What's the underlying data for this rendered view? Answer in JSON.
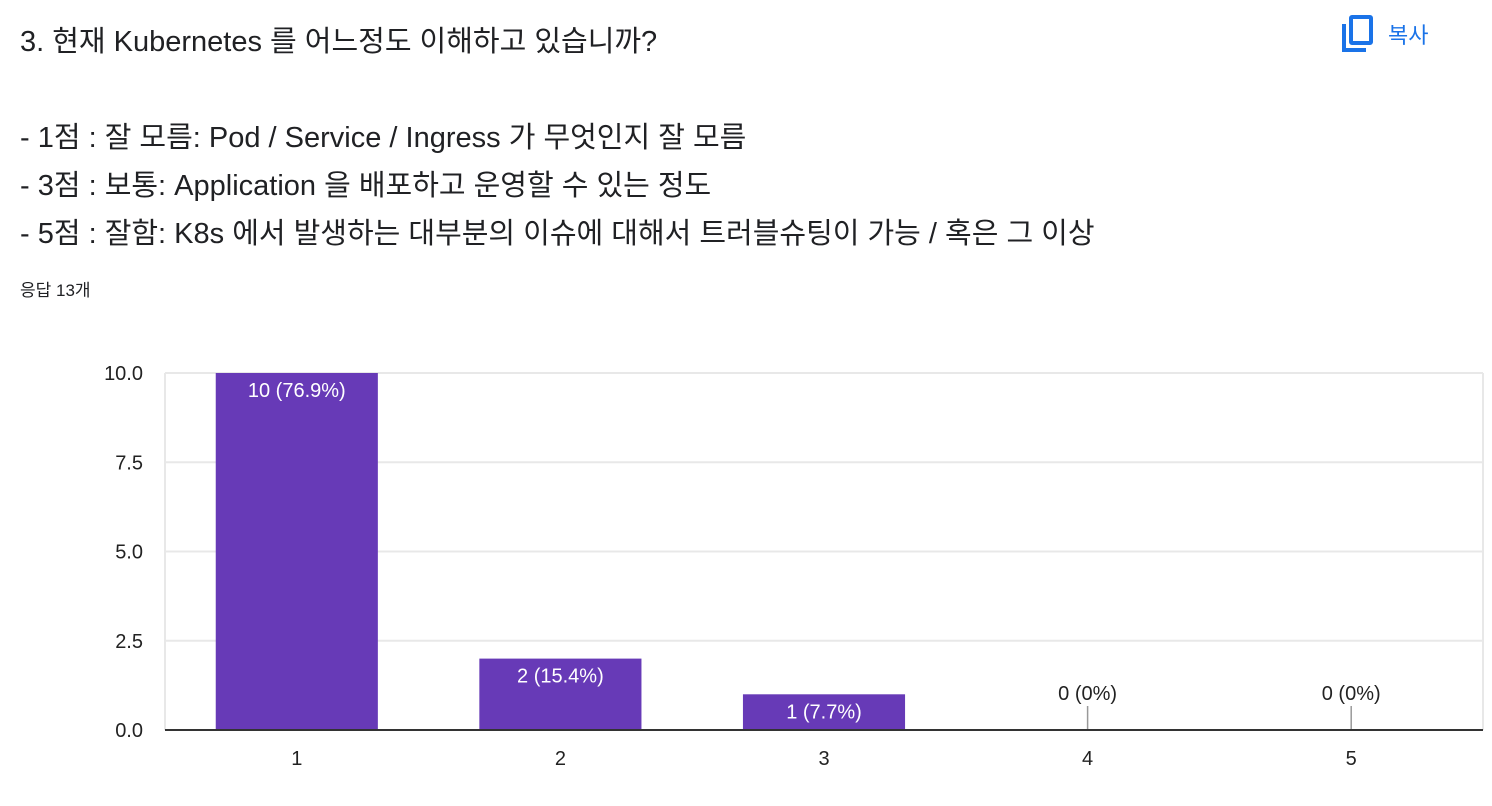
{
  "question": {
    "title": "3. 현재 Kubernetes 를 어느정도 이해하고 있습니까?",
    "criteria": [
      "- 1점 : 잘 모름: Pod / Service / Ingress 가 무엇인지 잘 모름",
      "- 3점 : 보통: Application 을 배포하고 운영할 수 있는 정도",
      "- 5점 :  잘함: K8s 에서 발생하는 대부분의 이슈에 대해서 트러블슈팅이 가능 / 혹은 그 이상"
    ]
  },
  "copy": {
    "label": "복사",
    "icon": "copy-icon"
  },
  "response_count": "응답 13개",
  "colors": {
    "bar": "#673ab7",
    "accent": "#1a73e8",
    "grid": "#e8e8e8",
    "axis": "#333333"
  },
  "chart_data": {
    "type": "bar",
    "categories": [
      "1",
      "2",
      "3",
      "4",
      "5"
    ],
    "values": [
      10,
      2,
      1,
      0,
      0
    ],
    "data_labels": [
      "10 (76.9%)",
      "2 (15.4%)",
      "1 (7.7%)",
      "0 (0%)",
      "0 (0%)"
    ],
    "y_ticks": [
      "0.0",
      "2.5",
      "5.0",
      "7.5",
      "10.0"
    ],
    "ylim": [
      0,
      10
    ],
    "grid": true,
    "title": "",
    "xlabel": "",
    "ylabel": ""
  }
}
